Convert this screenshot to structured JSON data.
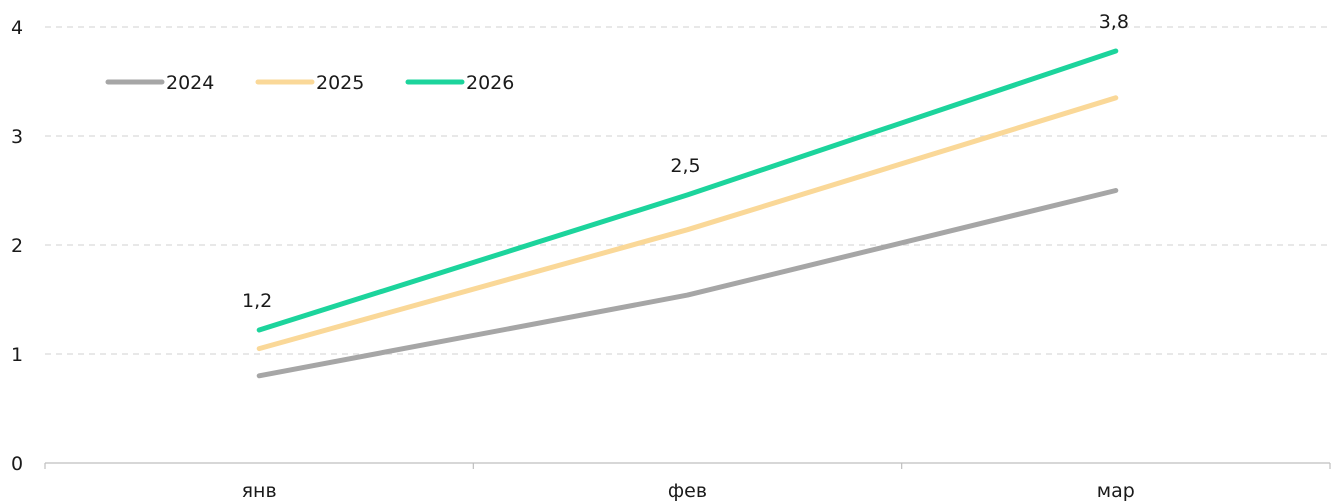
{
  "chart_data": {
    "type": "line",
    "categories": [
      "янв",
      "фев",
      "мар"
    ],
    "ylim": [
      0,
      4
    ],
    "y_ticks": [
      "0",
      "1",
      "2",
      "3",
      "4"
    ],
    "grid": true,
    "legend_position": "top-left",
    "series": [
      {
        "name": "2024",
        "values": [
          0.8,
          1.54,
          2.5
        ],
        "color": "#a6a6a6"
      },
      {
        "name": "2025",
        "values": [
          1.05,
          2.14,
          3.35
        ],
        "color": "#fad898"
      },
      {
        "name": "2026",
        "values": [
          1.22,
          2.46,
          3.78
        ],
        "color": "#1cd49c"
      }
    ],
    "data_labels": {
      "series": "2026",
      "texts": [
        "1,2",
        "2,5",
        "3,8"
      ]
    }
  }
}
